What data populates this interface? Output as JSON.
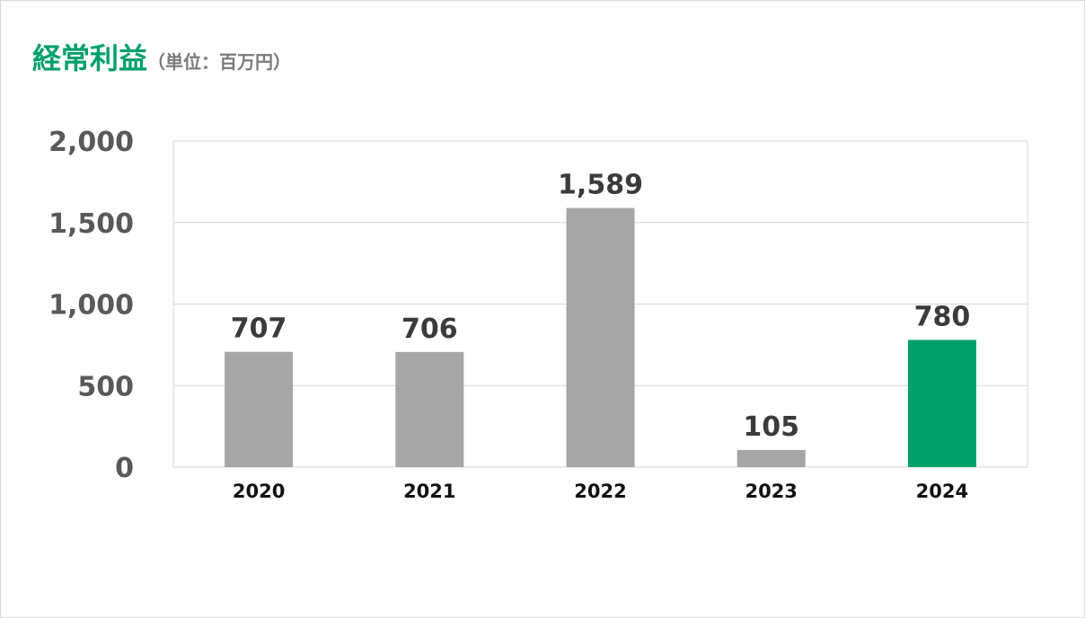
{
  "header": {
    "title": "経常利益",
    "unit": "（単位：百万円）"
  },
  "colors": {
    "default_bar": "#a6a6a6",
    "highlight_bar": "#00a06b",
    "title": "#00a06b",
    "gridline": "#d9d9d9"
  },
  "chart_data": {
    "type": "bar",
    "title": "経常利益",
    "subtitle": "（単位：百万円）",
    "categories": [
      "2020",
      "2021",
      "2022",
      "2023",
      "2024"
    ],
    "values": [
      707,
      706,
      1589,
      105,
      780
    ],
    "data_labels": [
      "707",
      "706",
      "1,589",
      "105",
      "780"
    ],
    "yticks": [
      0,
      500,
      1000,
      1500,
      2000
    ],
    "ytick_labels": [
      "0",
      "500",
      "1,000",
      "1,500",
      "2,000"
    ],
    "ylim": [
      0,
      2000
    ],
    "xlabel": "",
    "ylabel": "",
    "grid": true,
    "legend": "none",
    "highlight_category": "2024"
  }
}
